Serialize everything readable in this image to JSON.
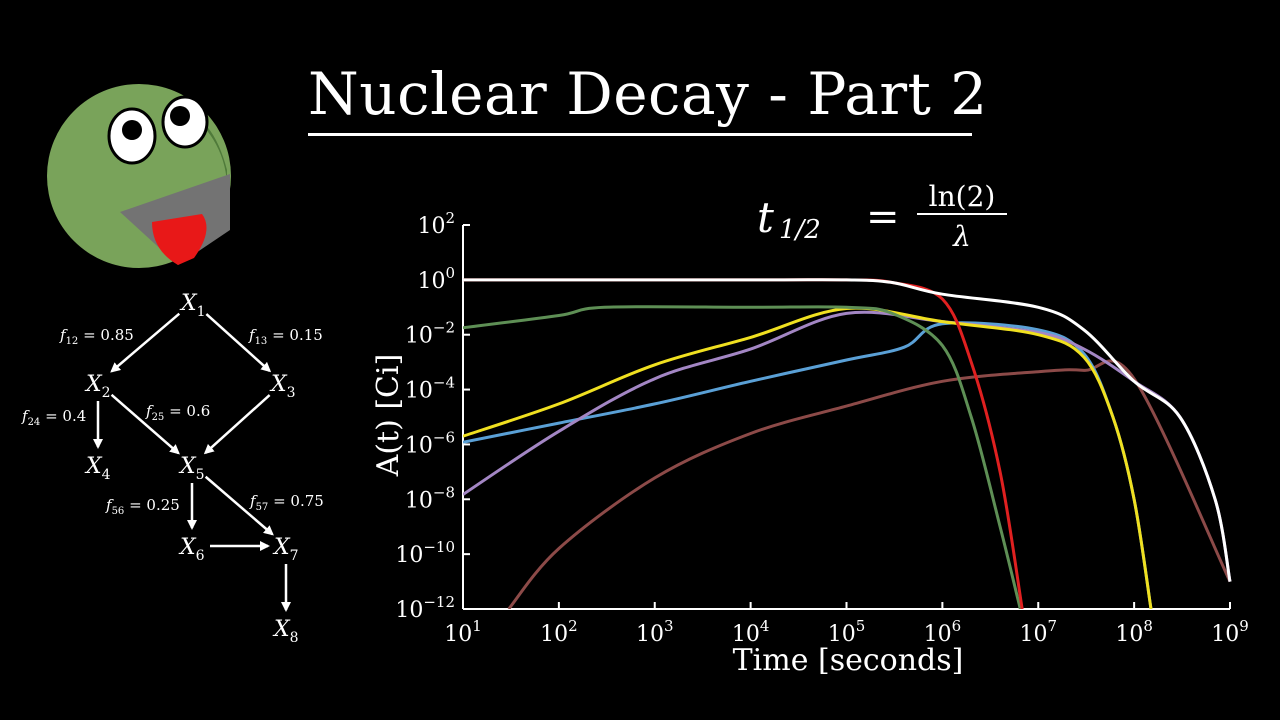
{
  "title": "Nuclear Decay - Part 2",
  "formula": {
    "lhs_main": "t",
    "lhs_sub": "1/2",
    "equals": "=",
    "numerator": "ln(2)",
    "denominator": "λ"
  },
  "network": {
    "nodes": [
      {
        "id": "X1",
        "main": "X",
        "sub": "1"
      },
      {
        "id": "X2",
        "main": "X",
        "sub": "2"
      },
      {
        "id": "X3",
        "main": "X",
        "sub": "3"
      },
      {
        "id": "X4",
        "main": "X",
        "sub": "4"
      },
      {
        "id": "X5",
        "main": "X",
        "sub": "5"
      },
      {
        "id": "X6",
        "main": "X",
        "sub": "6"
      },
      {
        "id": "X7",
        "main": "X",
        "sub": "7"
      },
      {
        "id": "X8",
        "main": "X",
        "sub": "8"
      }
    ],
    "edges": [
      {
        "from": "X1",
        "to": "X2",
        "label_sub": "12",
        "value": "0.85"
      },
      {
        "from": "X1",
        "to": "X3",
        "label_sub": "13",
        "value": "0.15"
      },
      {
        "from": "X2",
        "to": "X4",
        "label_sub": "24",
        "value": "0.4"
      },
      {
        "from": "X2",
        "to": "X5",
        "label_sub": "25",
        "value": "0.6"
      },
      {
        "from": "X3",
        "to": "X5",
        "label_sub": "",
        "value": ""
      },
      {
        "from": "X5",
        "to": "X6",
        "label_sub": "56",
        "value": "0.25"
      },
      {
        "from": "X5",
        "to": "X7",
        "label_sub": "57",
        "value": "0.75"
      },
      {
        "from": "X6",
        "to": "X7",
        "label_sub": "",
        "value": ""
      },
      {
        "from": "X7",
        "to": "X8",
        "label_sub": "",
        "value": ""
      }
    ],
    "label_symbol": "f"
  },
  "chart_data": {
    "type": "line",
    "x_scale": "log",
    "y_scale": "log",
    "xlabel": "Time [seconds]",
    "ylabel": "A(t) [Ci]",
    "xlim": [
      10,
      1000000000
    ],
    "ylim": [
      1e-12,
      100
    ],
    "x_ticks": [
      {
        "value": 10,
        "base": "10",
        "exp": "1"
      },
      {
        "value": 100,
        "base": "10",
        "exp": "2"
      },
      {
        "value": 1000,
        "base": "10",
        "exp": "3"
      },
      {
        "value": 10000,
        "base": "10",
        "exp": "4"
      },
      {
        "value": 100000,
        "base": "10",
        "exp": "5"
      },
      {
        "value": 1000000,
        "base": "10",
        "exp": "6"
      },
      {
        "value": 10000000,
        "base": "10",
        "exp": "7"
      },
      {
        "value": 100000000,
        "base": "10",
        "exp": "8"
      },
      {
        "value": 1000000000,
        "base": "10",
        "exp": "9"
      }
    ],
    "y_ticks": [
      {
        "value": 100,
        "base": "10",
        "exp": "2"
      },
      {
        "value": 1,
        "base": "10",
        "exp": "0"
      },
      {
        "value": 0.01,
        "base": "10",
        "exp": "−2"
      },
      {
        "value": 0.0001,
        "base": "10",
        "exp": "−4"
      },
      {
        "value": 1e-06,
        "base": "10",
        "exp": "−6"
      },
      {
        "value": 1e-08,
        "base": "10",
        "exp": "−8"
      },
      {
        "value": 1e-10,
        "base": "10",
        "exp": "−10"
      },
      {
        "value": 1e-12,
        "base": "10",
        "exp": "−12"
      }
    ],
    "series": [
      {
        "color": "#8c4a48",
        "points": [
          [
            30,
            1e-12
          ],
          [
            100,
            1.6e-10
          ],
          [
            1000,
            6e-08
          ],
          [
            10000,
            2.5e-06
          ],
          [
            100000,
            2.5e-05
          ],
          [
            1000000,
            0.0002
          ],
          [
            10000000,
            0.00045
          ],
          [
            30000000,
            0.0005
          ],
          [
            100000000,
            0.00025
          ],
          [
            1000000000,
            1e-11
          ]
        ]
      },
      {
        "color": "#5aa0d6",
        "points": [
          [
            10,
            1.2e-06
          ],
          [
            100,
            6e-06
          ],
          [
            1000,
            3e-05
          ],
          [
            10000,
            0.0002
          ],
          [
            100000,
            0.0012
          ],
          [
            400000,
            0.0035
          ],
          [
            1000000,
            0.025
          ],
          [
            10000000,
            0.015
          ],
          [
            30000000,
            0.002
          ],
          [
            60000000,
            1e-05
          ],
          [
            100000000,
            1e-08
          ],
          [
            150000000,
            1e-12
          ]
        ]
      },
      {
        "color": "#a386c4",
        "points": [
          [
            10,
            1.5e-08
          ],
          [
            100,
            3e-06
          ],
          [
            1000,
            0.00025
          ],
          [
            10000,
            0.003
          ],
          [
            100000,
            0.06
          ],
          [
            1000000,
            0.03
          ],
          [
            10000000,
            0.012
          ],
          [
            30000000,
            0.003
          ],
          [
            100000000,
            0.0002
          ],
          [
            300000000,
            1e-05
          ],
          [
            700000000,
            1e-08
          ],
          [
            1000000000,
            1e-11
          ]
        ]
      },
      {
        "color": "#f0e020",
        "points": [
          [
            10,
            2e-06
          ],
          [
            100,
            3e-05
          ],
          [
            1000,
            0.0008
          ],
          [
            10000,
            0.008
          ],
          [
            100000,
            0.09
          ],
          [
            1000000,
            0.03
          ],
          [
            10000000,
            0.01
          ],
          [
            30000000,
            0.0015
          ],
          [
            60000000,
            1e-05
          ],
          [
            100000000,
            1e-08
          ],
          [
            150000000,
            1e-12
          ]
        ]
      },
      {
        "color": "#5e8f55",
        "points": [
          [
            10,
            0.018
          ],
          [
            100,
            0.05
          ],
          [
            300,
            0.1
          ],
          [
            10000,
            0.1
          ],
          [
            100000,
            0.1
          ],
          [
            300000,
            0.06
          ],
          [
            1000000,
            0.004
          ],
          [
            2000000,
            1e-05
          ],
          [
            4000000,
            1e-09
          ],
          [
            6500000,
            1e-12
          ]
        ]
      },
      {
        "color": "#e02020",
        "points": [
          [
            10,
            1
          ],
          [
            10000,
            1
          ],
          [
            100000,
            1
          ],
          [
            300000,
            0.8
          ],
          [
            1000000,
            0.2
          ],
          [
            2000000,
            0.001
          ],
          [
            4000000,
            1e-07
          ],
          [
            6800000,
            1e-12
          ]
        ]
      },
      {
        "color": "#ffffff",
        "points": [
          [
            10,
            1
          ],
          [
            10000,
            1
          ],
          [
            100000,
            1
          ],
          [
            300000,
            0.8
          ],
          [
            1000000,
            0.3
          ],
          [
            10000000,
            0.1
          ],
          [
            30000000,
            0.015
          ],
          [
            100000000,
            0.0002
          ],
          [
            300000000,
            1e-05
          ],
          [
            700000000,
            1e-08
          ],
          [
            1000000000,
            1e-11
          ]
        ]
      }
    ]
  }
}
